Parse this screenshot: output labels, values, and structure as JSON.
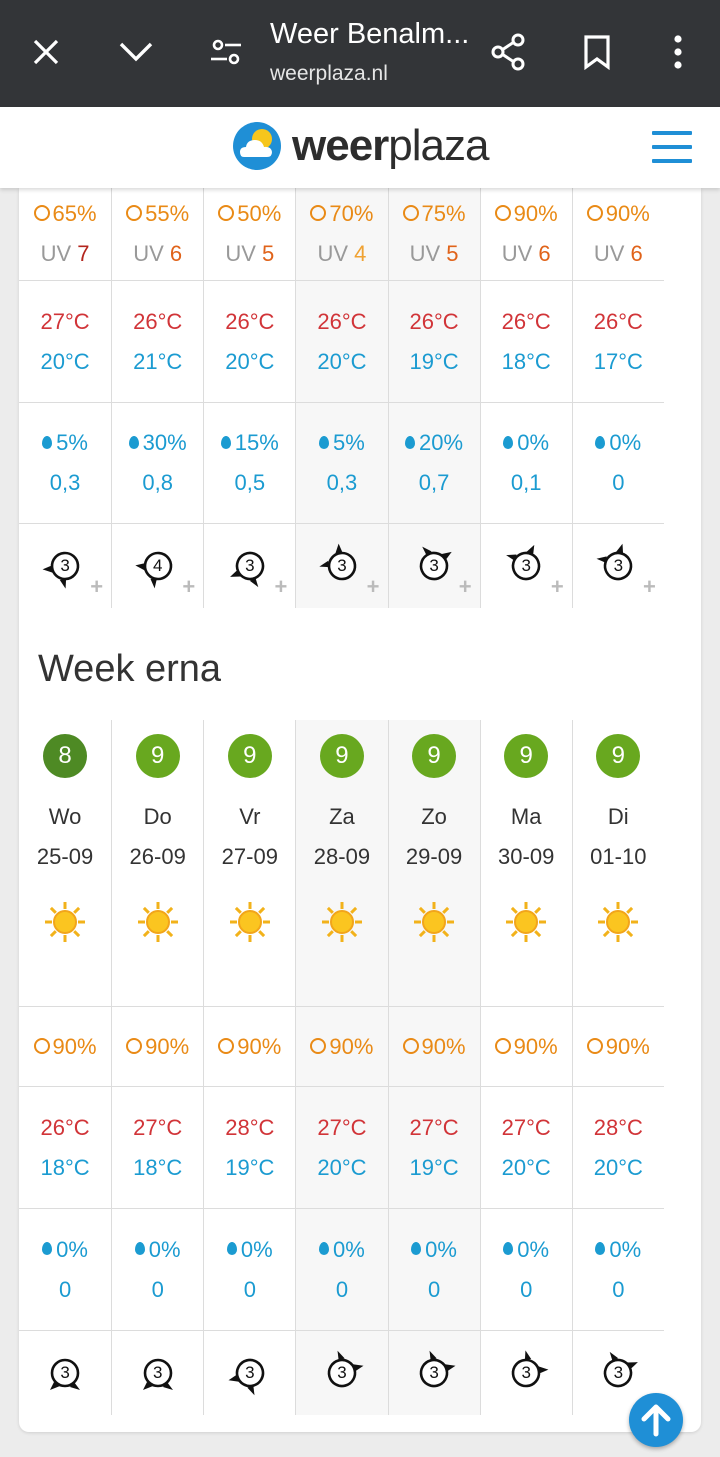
{
  "browser": {
    "title": "Weer Benalm...",
    "url": "weerplaza.nl",
    "close_icon": "close-icon",
    "collapse_icon": "chevron-down-icon",
    "settings_icon": "tune-icon",
    "share_icon": "share-icon",
    "bookmark_icon": "bookmark-icon",
    "menu_icon": "more-vert-icon"
  },
  "header": {
    "logo_bold": "weer",
    "logo_light": "plaza",
    "menu_icon": "hamburger-icon",
    "brand_color": "#1f8fd6"
  },
  "week1": {
    "sun": [
      "65%",
      "55%",
      "50%",
      "70%",
      "75%",
      "90%",
      "90%"
    ],
    "uv_label": "UV",
    "uv": [
      "7",
      "6",
      "5",
      "4",
      "5",
      "6",
      "6"
    ],
    "tmax": [
      "27°C",
      "26°C",
      "26°C",
      "26°C",
      "26°C",
      "26°C",
      "26°C"
    ],
    "tmin": [
      "20°C",
      "21°C",
      "20°C",
      "20°C",
      "19°C",
      "18°C",
      "17°C"
    ],
    "rain_pct": [
      "5%",
      "30%",
      "15%",
      "5%",
      "20%",
      "0%",
      "0%"
    ],
    "rain_mm": [
      "0,3",
      "0,8",
      "0,5",
      "0,3",
      "0,7",
      "0,1",
      "0"
    ],
    "wind": [
      "3",
      "4",
      "3",
      "3",
      "3",
      "3",
      "3"
    ],
    "plus": "+"
  },
  "week2": {
    "title": "Week erna",
    "scores": [
      "8",
      "9",
      "9",
      "9",
      "9",
      "9",
      "9"
    ],
    "days": [
      "Wo",
      "Do",
      "Vr",
      "Za",
      "Zo",
      "Ma",
      "Di"
    ],
    "dates": [
      "25-09",
      "26-09",
      "27-09",
      "28-09",
      "29-09",
      "30-09",
      "01-10"
    ],
    "sun": [
      "90%",
      "90%",
      "90%",
      "90%",
      "90%",
      "90%",
      "90%"
    ],
    "tmax": [
      "26°C",
      "27°C",
      "28°C",
      "27°C",
      "27°C",
      "27°C",
      "28°C"
    ],
    "tmin": [
      "18°C",
      "18°C",
      "19°C",
      "20°C",
      "19°C",
      "20°C",
      "20°C"
    ],
    "rain_pct": [
      "0%",
      "0%",
      "0%",
      "0%",
      "0%",
      "0%",
      "0%"
    ],
    "rain_mm": [
      "0",
      "0",
      "0",
      "0",
      "0",
      "0",
      "0"
    ],
    "wind": [
      "3",
      "3",
      "3",
      "3",
      "3",
      "3",
      "3"
    ]
  },
  "scroll_top_icon": "arrow-up-icon"
}
